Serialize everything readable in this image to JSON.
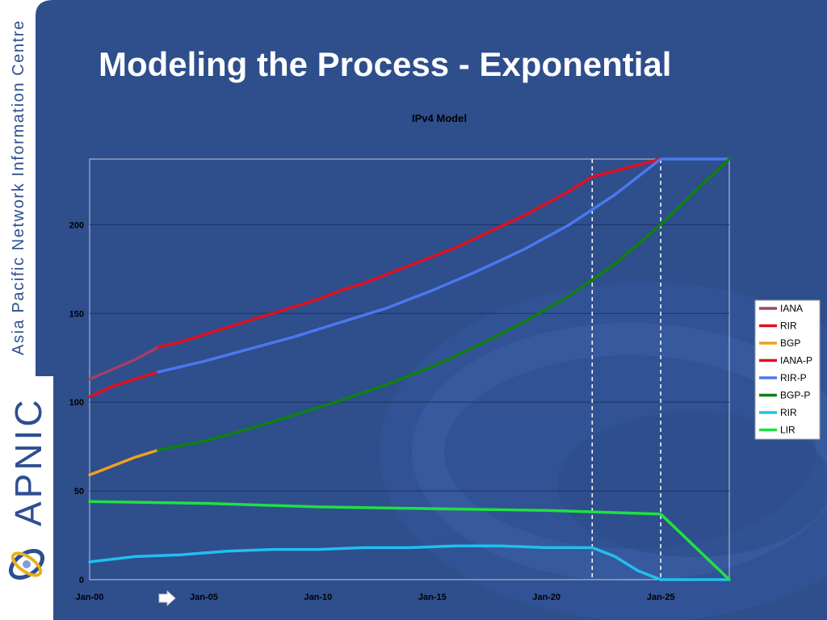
{
  "sidebar": {
    "org_name": "Asia Pacific Network Information Centre",
    "brand": "APNIC",
    "logo_icon": "apnic-swirl-icon"
  },
  "slide": {
    "title": "Modeling the Process - Exponential",
    "nav_icon": "next-arrow-icon"
  },
  "colors": {
    "background": "#2e4e8c",
    "iana": "#a0406a",
    "rir": "#e01020",
    "bgp": "#f0a020",
    "iana_p": "#e01020",
    "rir_p": "#4a78f0",
    "bgp_p": "#108010",
    "rir_pool": "#20c0f0",
    "lir": "#20e040"
  },
  "chart_data": {
    "type": "line",
    "title": "IPv4 Model",
    "xlabel": "",
    "ylabel": "",
    "x_ticks": [
      "Jan-00",
      "Jan-05",
      "Jan-10",
      "Jan-15",
      "Jan-20",
      "Jan-25"
    ],
    "y_ticks": [
      "0",
      "50",
      "100",
      "150",
      "200"
    ],
    "xlim": [
      "Jan-00",
      "Jan-28"
    ],
    "ylim": [
      0,
      237
    ],
    "grid": "horizontal",
    "legend_position": "right",
    "vertical_markers": [
      "Jan-22",
      "Jan-25"
    ],
    "series": [
      {
        "name": "IANA",
        "x": [
          "Jan-00",
          "Jan-02",
          "Jan-03"
        ],
        "values": [
          113,
          124,
          131
        ]
      },
      {
        "name": "RIR",
        "x": [
          "Jan-00",
          "Jan-01",
          "Jan-02",
          "Jan-03"
        ],
        "values": [
          103,
          109,
          113,
          117
        ]
      },
      {
        "name": "BGP",
        "x": [
          "Jan-00",
          "Jan-01",
          "Jan-02",
          "Jan-03"
        ],
        "values": [
          59,
          64,
          69,
          73
        ]
      },
      {
        "name": "IANA-P",
        "x": [
          "Jan-03",
          "Jan-04",
          "Jan-05",
          "Jan-06",
          "Jan-07",
          "Jan-08",
          "Jan-09",
          "Jan-10",
          "Jan-11",
          "Jan-12",
          "Jan-13",
          "Jan-14",
          "Jan-15",
          "Jan-16",
          "Jan-17",
          "Jan-18",
          "Jan-19",
          "Jan-20",
          "Jan-21",
          "Jan-22",
          "Jan-25"
        ],
        "values": [
          131,
          134,
          138,
          142,
          146,
          150,
          154,
          158,
          163,
          167,
          172,
          177,
          182,
          187,
          193,
          199,
          205,
          212,
          219,
          227,
          237
        ]
      },
      {
        "name": "RIR-P",
        "x": [
          "Jan-03",
          "Jan-05",
          "Jan-07",
          "Jan-09",
          "Jan-11",
          "Jan-13",
          "Jan-15",
          "Jan-17",
          "Jan-19",
          "Jan-21",
          "Jan-23",
          "Jan-25",
          "Jan-28"
        ],
        "values": [
          117,
          123,
          130,
          137,
          145,
          153,
          163,
          174,
          186,
          200,
          217,
          237,
          237
        ]
      },
      {
        "name": "BGP-P",
        "x": [
          "Jan-03",
          "Jan-05",
          "Jan-07",
          "Jan-09",
          "Jan-11",
          "Jan-13",
          "Jan-15",
          "Jan-17",
          "Jan-19",
          "Jan-21",
          "Jan-23",
          "Jan-25",
          "Jan-27",
          "Jan-28"
        ],
        "values": [
          73,
          78,
          85,
          93,
          101,
          110,
          120,
          132,
          145,
          160,
          178,
          200,
          225,
          237
        ]
      },
      {
        "name": "RIR",
        "x": [
          "Jan-00",
          "Jan-02",
          "Jan-04",
          "Jan-06",
          "Jan-08",
          "Jan-10",
          "Jan-12",
          "Jan-14",
          "Jan-16",
          "Jan-18",
          "Jan-20",
          "Jan-22",
          "Jan-23",
          "Jan-24",
          "Jan-25",
          "Jan-28"
        ],
        "values": [
          10,
          13,
          14,
          16,
          17,
          17,
          18,
          18,
          19,
          19,
          18,
          18,
          13,
          5,
          0,
          0
        ]
      },
      {
        "name": "LIR",
        "x": [
          "Jan-00",
          "Jan-05",
          "Jan-10",
          "Jan-15",
          "Jan-20",
          "Jan-25",
          "Jan-28"
        ],
        "values": [
          44,
          43,
          41,
          40,
          39,
          37,
          0
        ]
      }
    ]
  }
}
